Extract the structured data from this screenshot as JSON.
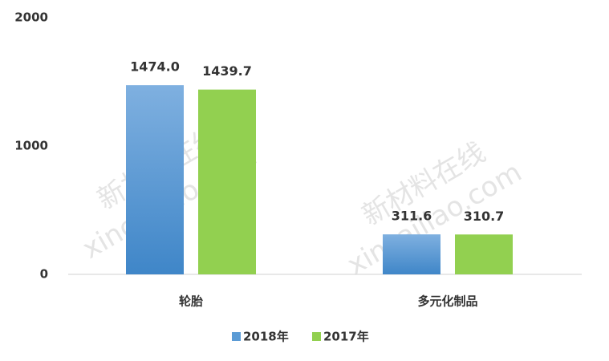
{
  "chart_data": {
    "type": "bar",
    "categories": [
      "轮胎",
      "多元化制品"
    ],
    "series": [
      {
        "name": "2018年",
        "color": "#5b9bd5",
        "values": [
          1474.0,
          311.6
        ],
        "value_labels": [
          "1474.0",
          "311.6"
        ]
      },
      {
        "name": "2017年",
        "color": "#92d050",
        "values": [
          1439.7,
          310.7
        ],
        "value_labels": [
          "1439.7",
          "310.7"
        ]
      }
    ],
    "ylim": [
      0,
      2000
    ],
    "yticks": [
      0,
      1000,
      2000
    ],
    "grid": false,
    "legend": "bottom",
    "watermark": [
      "新材料在线",
      "xincailiao.com"
    ]
  }
}
